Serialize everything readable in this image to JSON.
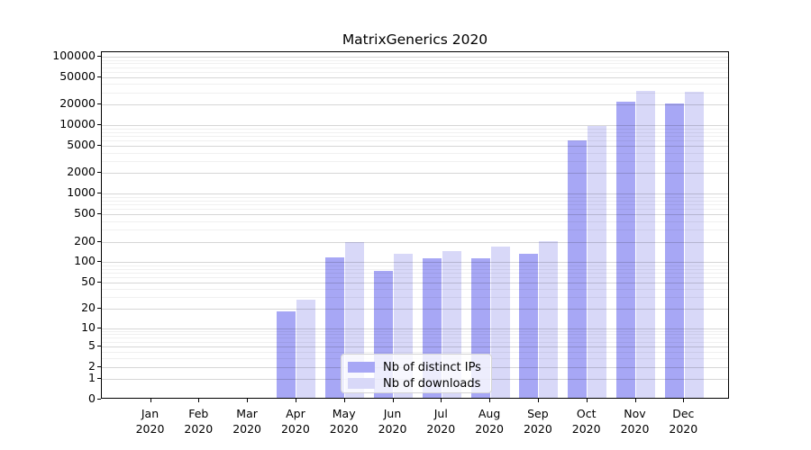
{
  "chart_data": {
    "type": "bar",
    "title": "MatrixGenerics 2020",
    "yscale": "log1p",
    "ylim": [
      0,
      100000
    ],
    "grid": true,
    "legend_position": "inside-bottom-center",
    "categories": [
      "Jan 2020",
      "Feb 2020",
      "Mar 2020",
      "Apr 2020",
      "May 2020",
      "Jun 2020",
      "Jul 2020",
      "Aug 2020",
      "Sep 2020",
      "Oct 2020",
      "Nov 2020",
      "Dec 2020"
    ],
    "y_ticks": [
      0,
      1,
      2,
      5,
      10,
      20,
      50,
      100,
      200,
      500,
      1000,
      2000,
      5000,
      10000,
      20000,
      50000,
      100000
    ],
    "series": [
      {
        "name": "Nb of distinct IPs",
        "color": "#a7a7f5",
        "values": [
          0,
          0,
          0,
          17,
          112,
          70,
          108,
          106,
          126,
          5700,
          21000,
          19700
        ]
      },
      {
        "name": "Nb of downloads",
        "color": "#d8d8f8",
        "values": [
          0,
          0,
          0,
          26,
          188,
          126,
          139,
          160,
          190,
          9200,
          30000,
          29000
        ]
      }
    ]
  }
}
